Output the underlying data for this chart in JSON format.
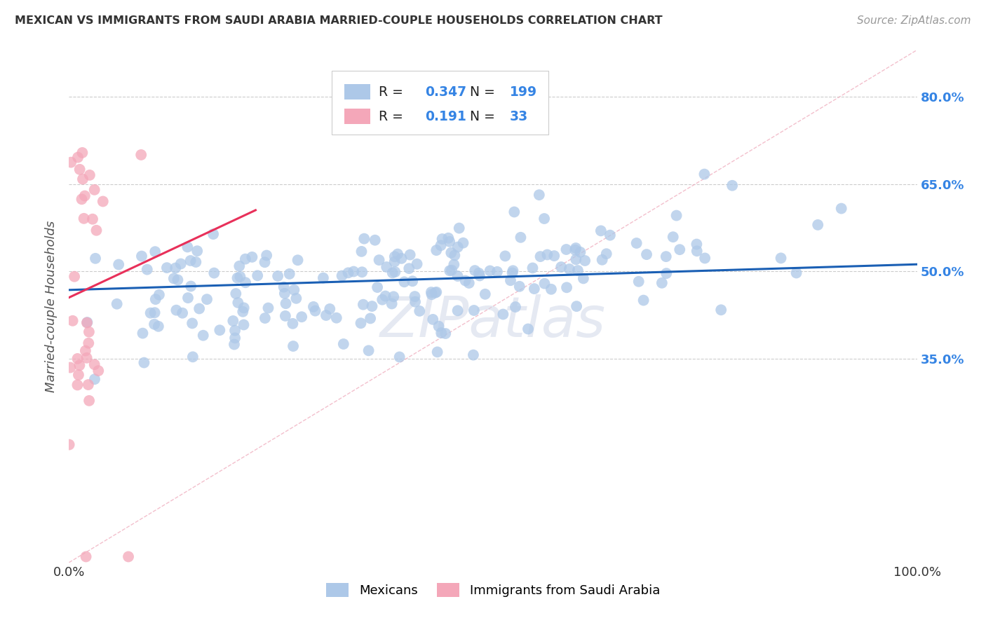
{
  "title": "MEXICAN VS IMMIGRANTS FROM SAUDI ARABIA MARRIED-COUPLE HOUSEHOLDS CORRELATION CHART",
  "source": "Source: ZipAtlas.com",
  "ylabel": "Married-couple Households",
  "xlabel": "",
  "xlim": [
    0,
    1.0
  ],
  "ylim": [
    0.0,
    0.88
  ],
  "ytick_labels": [
    "35.0%",
    "50.0%",
    "65.0%",
    "80.0%"
  ],
  "ytick_values": [
    0.35,
    0.5,
    0.65,
    0.8
  ],
  "xtick_labels": [
    "0.0%",
    "100.0%"
  ],
  "xtick_values": [
    0.0,
    1.0
  ],
  "legend_labels": [
    "Mexicans",
    "Immigrants from Saudi Arabia"
  ],
  "blue_R": "0.347",
  "blue_N": "199",
  "pink_R": "0.191",
  "pink_N": "33",
  "blue_color": "#adc8e8",
  "pink_color": "#f4a7b9",
  "blue_line_color": "#1a5fb4",
  "pink_line_color": "#e8305a",
  "diagonal_color": "#f0b0c0",
  "watermark": "ZIPatlas",
  "background_color": "#ffffff",
  "grid_color": "#cccccc",
  "title_color": "#333333",
  "axis_label_color": "#555555",
  "right_tick_color": "#3584e4",
  "seed": 12,
  "blue_n": 199,
  "pink_n": 33
}
